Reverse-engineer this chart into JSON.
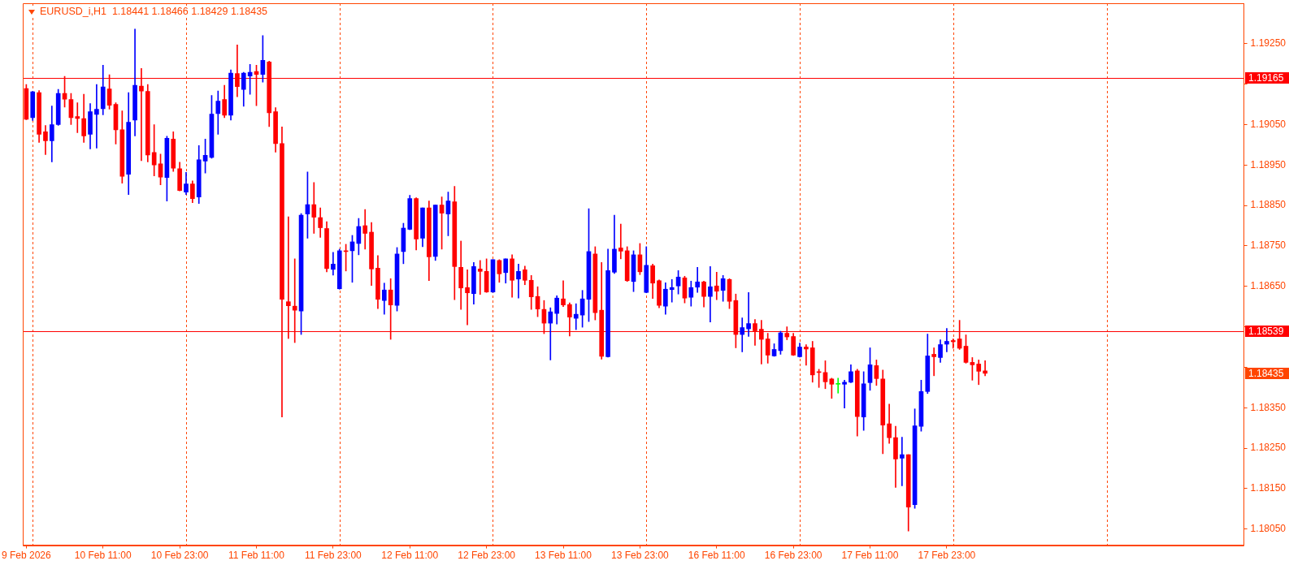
{
  "chart_data": {
    "type": "candlestick",
    "title": "EURUSD_i,H1  1.18441 1.18466 1.18429 1.18435",
    "categories": [
      "9 Feb 2026",
      null,
      null,
      null,
      null,
      null,
      null,
      null,
      null,
      null,
      null,
      null,
      "10 Feb 11:00",
      null,
      null,
      null,
      null,
      null,
      null,
      null,
      null,
      null,
      null,
      null,
      "10 Feb 23:00",
      null,
      null,
      null,
      null,
      null,
      null,
      null,
      null,
      null,
      null,
      null,
      "11 Feb 11:00",
      null,
      null,
      null,
      null,
      null,
      null,
      null,
      null,
      null,
      null,
      null,
      "11 Feb 23:00",
      null,
      null,
      null,
      null,
      null,
      null,
      null,
      null,
      null,
      null,
      null,
      "12 Feb 11:00",
      null,
      null,
      null,
      null,
      null,
      null,
      null,
      null,
      null,
      null,
      null,
      "12 Feb 23:00",
      null,
      null,
      null,
      null,
      null,
      null,
      null,
      null,
      null,
      null,
      null,
      "13 Feb 11:00",
      null,
      null,
      null,
      null,
      null,
      null,
      null,
      null,
      null,
      null,
      null,
      "13 Feb 23:00",
      null,
      null,
      null,
      null,
      null,
      null,
      null,
      null,
      null,
      null,
      null,
      "16 Feb 11:00",
      null,
      null,
      null,
      null,
      null,
      null,
      null,
      null,
      null,
      null,
      null,
      "16 Feb 23:00",
      null,
      null,
      null,
      null,
      null,
      null,
      null,
      null,
      null,
      null,
      null,
      "17 Feb 11:00",
      null,
      null,
      null,
      null,
      null,
      null,
      null,
      null,
      null,
      null,
      null,
      "17 Feb 23:00",
      null,
      null,
      null,
      null,
      null,
      null,
      null,
      null,
      null,
      null,
      null,
      null,
      null,
      null,
      null,
      null,
      null,
      null,
      null,
      null,
      null,
      null,
      null,
      null,
      null,
      null,
      null,
      null,
      null,
      null,
      null,
      null,
      null,
      null,
      null,
      null,
      null,
      null,
      null,
      null,
      null,
      null,
      null,
      null,
      null,
      null
    ],
    "ohlc": [
      [
        1.19139,
        1.19149,
        1.19062,
        1.19063
      ],
      [
        1.19067,
        1.19132,
        1.1906,
        1.19131
      ],
      [
        1.19129,
        1.19134,
        1.19006,
        1.19026
      ],
      [
        1.19032,
        1.19048,
        1.18976,
        1.1901
      ],
      [
        1.1901,
        1.19096,
        1.18958,
        1.1905
      ],
      [
        1.1905,
        1.19137,
        1.19048,
        1.19127
      ],
      [
        1.19127,
        1.19169,
        1.19093,
        1.19113
      ],
      [
        1.19112,
        1.19127,
        1.1905,
        1.19067
      ],
      [
        1.1907,
        1.19104,
        1.1903,
        1.19065
      ],
      [
        1.19065,
        1.19125,
        1.19006,
        1.19022
      ],
      [
        1.19026,
        1.19102,
        1.1899,
        1.19082
      ],
      [
        1.19075,
        1.19149,
        1.18992,
        1.19088
      ],
      [
        1.19089,
        1.19197,
        1.19074,
        1.19143
      ],
      [
        1.19138,
        1.19173,
        1.19088,
        1.19098
      ],
      [
        1.191,
        1.19104,
        1.19002,
        1.19037
      ],
      [
        1.19037,
        1.19084,
        1.18905,
        1.18922
      ],
      [
        1.18927,
        1.19129,
        1.18877,
        1.19056
      ],
      [
        1.19061,
        1.19286,
        1.19022,
        1.19147
      ],
      [
        1.19145,
        1.19189,
        1.18961,
        1.19133
      ],
      [
        1.19132,
        1.19149,
        1.18958,
        1.18975
      ],
      [
        1.18981,
        1.1905,
        1.18923,
        1.1895
      ],
      [
        1.18953,
        1.18977,
        1.18901,
        1.1892
      ],
      [
        1.18919,
        1.19021,
        1.18861,
        1.19016
      ],
      [
        1.19014,
        1.19032,
        1.18934,
        1.18942
      ],
      [
        1.18941,
        1.18957,
        1.18886,
        1.18887
      ],
      [
        1.18883,
        1.18932,
        1.18877,
        1.18903
      ],
      [
        1.18903,
        1.18911,
        1.18857,
        1.18867
      ],
      [
        1.18871,
        1.18998,
        1.18855,
        1.18963
      ],
      [
        1.1896,
        1.19014,
        1.1893,
        1.18974
      ],
      [
        1.18969,
        1.19122,
        1.18967,
        1.19076
      ],
      [
        1.19077,
        1.19133,
        1.19026,
        1.19108
      ],
      [
        1.19112,
        1.19147,
        1.19067,
        1.19073
      ],
      [
        1.19073,
        1.19185,
        1.19061,
        1.19177
      ],
      [
        1.19176,
        1.19247,
        1.19119,
        1.19144
      ],
      [
        1.19137,
        1.19179,
        1.19095,
        1.19177
      ],
      [
        1.1917,
        1.19199,
        1.19125,
        1.19179
      ],
      [
        1.19181,
        1.19197,
        1.19097,
        1.19174
      ],
      [
        1.19174,
        1.1927,
        1.19155,
        1.19209
      ],
      [
        1.19205,
        1.19207,
        1.19045,
        1.19079
      ],
      [
        1.19082,
        1.19092,
        1.18982,
        1.19003
      ],
      [
        1.19003,
        1.19044,
        1.18327,
        1.18618
      ],
      [
        1.18612,
        1.18822,
        1.18521,
        1.18602
      ],
      [
        1.18601,
        1.18718,
        1.18511,
        1.18591
      ],
      [
        1.18589,
        1.1883,
        1.18531,
        1.18826
      ],
      [
        1.18829,
        1.18933,
        1.18769,
        1.18852
      ],
      [
        1.18852,
        1.18907,
        1.18781,
        1.18821
      ],
      [
        1.1882,
        1.18844,
        1.18771,
        1.18795
      ],
      [
        1.18793,
        1.1881,
        1.18686,
        1.18694
      ],
      [
        1.18692,
        1.18734,
        1.18678,
        1.18705
      ],
      [
        1.18644,
        1.18742,
        1.18643,
        1.18738
      ],
      [
        1.18738,
        1.18754,
        1.18688,
        1.18736
      ],
      [
        1.18738,
        1.18776,
        1.1866,
        1.1876
      ],
      [
        1.18756,
        1.18818,
        1.18728,
        1.18798
      ],
      [
        1.188,
        1.1884,
        1.18742,
        1.18781
      ],
      [
        1.18784,
        1.18808,
        1.18652,
        1.18693
      ],
      [
        1.18695,
        1.18726,
        1.18595,
        1.18618
      ],
      [
        1.18615,
        1.18658,
        1.18581,
        1.18641
      ],
      [
        1.18641,
        1.18669,
        1.18519,
        1.18604
      ],
      [
        1.18603,
        1.18746,
        1.18589,
        1.1873
      ],
      [
        1.18736,
        1.18806,
        1.18706,
        1.18794
      ],
      [
        1.18791,
        1.18875,
        1.1879,
        1.18867
      ],
      [
        1.18867,
        1.18869,
        1.1874,
        1.18767
      ],
      [
        1.18769,
        1.18844,
        1.18748,
        1.18844
      ],
      [
        1.18844,
        1.18861,
        1.18664,
        1.18723
      ],
      [
        1.18724,
        1.18851,
        1.18714,
        1.18851
      ],
      [
        1.18851,
        1.18871,
        1.18742,
        1.18831
      ],
      [
        1.18829,
        1.18883,
        1.18775,
        1.18861
      ],
      [
        1.18859,
        1.18897,
        1.18617,
        1.18699
      ],
      [
        1.18697,
        1.18762,
        1.18593,
        1.18646
      ],
      [
        1.18647,
        1.18691,
        1.18555,
        1.18634
      ],
      [
        1.18632,
        1.18709,
        1.18606,
        1.18699
      ],
      [
        1.18693,
        1.18714,
        1.1863,
        1.18687
      ],
      [
        1.18687,
        1.18718,
        1.18635,
        1.18636
      ],
      [
        1.18636,
        1.18716,
        1.18635,
        1.18716
      ],
      [
        1.18714,
        1.18716,
        1.1866,
        1.18681
      ],
      [
        1.18684,
        1.18718,
        1.18658,
        1.18718
      ],
      [
        1.18718,
        1.18728,
        1.18623,
        1.18665
      ],
      [
        1.18668,
        1.18705,
        1.18621,
        1.18687
      ],
      [
        1.18691,
        1.187,
        1.18654,
        1.18665
      ],
      [
        1.18665,
        1.18677,
        1.18593,
        1.18624
      ],
      [
        1.18625,
        1.18649,
        1.18575,
        1.18594
      ],
      [
        1.18593,
        1.18615,
        1.18533,
        1.18559
      ],
      [
        1.18559,
        1.18597,
        1.18468,
        1.18587
      ],
      [
        1.18583,
        1.18627,
        1.18557,
        1.18621
      ],
      [
        1.18619,
        1.18664,
        1.186,
        1.18604
      ],
      [
        1.18605,
        1.18609,
        1.18527,
        1.18574
      ],
      [
        1.18571,
        1.18607,
        1.18543,
        1.18581
      ],
      [
        1.18579,
        1.1864,
        1.18549,
        1.18619
      ],
      [
        1.18618,
        1.18842,
        1.18563,
        1.18736
      ],
      [
        1.1873,
        1.18748,
        1.18567,
        1.18585
      ],
      [
        1.18591,
        1.18709,
        1.1847,
        1.18477
      ],
      [
        1.18476,
        1.18742,
        1.18475,
        1.18689
      ],
      [
        1.18685,
        1.18826,
        1.18682,
        1.18742
      ],
      [
        1.18745,
        1.18804,
        1.18718,
        1.18737
      ],
      [
        1.18738,
        1.18748,
        1.18662,
        1.18664
      ],
      [
        1.18662,
        1.18738,
        1.18637,
        1.18728
      ],
      [
        1.18728,
        1.18756,
        1.18679,
        1.18686
      ],
      [
        1.18635,
        1.18748,
        1.18634,
        1.18702
      ],
      [
        1.18701,
        1.18705,
        1.1862,
        1.18658
      ],
      [
        1.18664,
        1.18666,
        1.18597,
        1.18603
      ],
      [
        1.18601,
        1.18659,
        1.18581,
        1.18643
      ],
      [
        1.18642,
        1.18667,
        1.18611,
        1.18647
      ],
      [
        1.18651,
        1.18689,
        1.18631,
        1.18673
      ],
      [
        1.18671,
        1.18675,
        1.18609,
        1.18621
      ],
      [
        1.18623,
        1.18663,
        1.18601,
        1.18647
      ],
      [
        1.18648,
        1.18697,
        1.18635,
        1.18661
      ],
      [
        1.18661,
        1.18663,
        1.18599,
        1.18625
      ],
      [
        1.18625,
        1.18699,
        1.18562,
        1.18649
      ],
      [
        1.18651,
        1.18685,
        1.18617,
        1.18638
      ],
      [
        1.1864,
        1.18677,
        1.18613,
        1.18669
      ],
      [
        1.18667,
        1.18669,
        1.18595,
        1.18613
      ],
      [
        1.18615,
        1.18631,
        1.18498,
        1.18531
      ],
      [
        1.18531,
        1.18572,
        1.18488,
        1.18548
      ],
      [
        1.18545,
        1.18635,
        1.18526,
        1.18558
      ],
      [
        1.18558,
        1.18568,
        1.18504,
        1.1854
      ],
      [
        1.18544,
        1.18566,
        1.18458,
        1.18519
      ],
      [
        1.1852,
        1.18534,
        1.1846,
        1.1848
      ],
      [
        1.18478,
        1.18508,
        1.18477,
        1.18494
      ],
      [
        1.18491,
        1.18539,
        1.18482,
        1.18535
      ],
      [
        1.18534,
        1.1855,
        1.18518,
        1.18525
      ],
      [
        1.18526,
        1.18534,
        1.18479,
        1.1848
      ],
      [
        1.18476,
        1.1851,
        1.18475,
        1.185
      ],
      [
        1.185,
        1.18506,
        1.18455,
        1.18495
      ],
      [
        1.18498,
        1.18514,
        1.18413,
        1.18431
      ],
      [
        1.18439,
        1.18445,
        1.184,
        1.18437
      ],
      [
        1.18437,
        1.18466,
        1.18397,
        1.18414
      ],
      [
        1.18421,
        1.18423,
        1.18373,
        1.18408
      ],
      [
        1.18408,
        1.18423,
        1.18386,
        1.18408
      ],
      [
        1.18408,
        1.18418,
        1.18349,
        1.18413
      ],
      [
        1.18413,
        1.18456,
        1.18412,
        1.18439
      ],
      [
        1.18441,
        1.18445,
        1.1828,
        1.18328
      ],
      [
        1.18327,
        1.18439,
        1.18294,
        1.18409
      ],
      [
        1.18412,
        1.18498,
        1.18393,
        1.18456
      ],
      [
        1.18454,
        1.18468,
        1.18405,
        1.18422
      ],
      [
        1.18421,
        1.18443,
        1.18236,
        1.18307
      ],
      [
        1.1831,
        1.18359,
        1.18262,
        1.18276
      ],
      [
        1.18276,
        1.18304,
        1.18153,
        1.18223
      ],
      [
        1.18225,
        1.18277,
        1.18157,
        1.18234
      ],
      [
        1.18234,
        1.18234,
        1.18045,
        1.18104
      ],
      [
        1.1811,
        1.18347,
        1.18101,
        1.18305
      ],
      [
        1.18304,
        1.18418,
        1.18292,
        1.1839
      ],
      [
        1.1839,
        1.18532,
        1.18385,
        1.18478
      ],
      [
        1.18482,
        1.18498,
        1.18429,
        1.18476
      ],
      [
        1.18474,
        1.18518,
        1.18462,
        1.18506
      ],
      [
        1.18507,
        1.18546,
        1.18488,
        1.18514
      ],
      [
        1.18516,
        1.1852,
        1.18497,
        1.18513
      ],
      [
        1.1852,
        1.18566,
        1.18494,
        1.18497
      ],
      [
        1.18502,
        1.1853,
        1.1846,
        1.18462
      ],
      [
        1.18462,
        1.18474,
        1.18418,
        1.18456
      ],
      [
        1.18458,
        1.18468,
        1.18407,
        1.1844
      ],
      [
        1.18441,
        1.18466,
        1.18429,
        1.18435
      ],
      null,
      null,
      null,
      null,
      null,
      null,
      null,
      null,
      null,
      null,
      null,
      null,
      null,
      null,
      null,
      null,
      null,
      null,
      null,
      null,
      null,
      null,
      null,
      null,
      null,
      null,
      null,
      null,
      null,
      null,
      null,
      null,
      null,
      null,
      null,
      null,
      null,
      null,
      null,
      null
    ],
    "colors": [
      "#ff0000",
      "#0000ff",
      "#ff0000",
      "#ff0000",
      "#0000ff",
      "#0000ff",
      "#ff0000",
      "#ff0000",
      "#ff0000",
      "#ff0000",
      "#0000ff",
      "#0000ff",
      "#0000ff",
      "#ff0000",
      "#ff0000",
      "#ff0000",
      "#0000ff",
      "#0000ff",
      "#ff0000",
      "#ff0000",
      "#ff0000",
      "#ff0000",
      "#0000ff",
      "#ff0000",
      "#ff0000",
      "#0000ff",
      "#ff0000",
      "#0000ff",
      "#0000ff",
      "#0000ff",
      "#0000ff",
      "#ff0000",
      "#0000ff",
      "#ff0000",
      "#0000ff",
      "#0000ff",
      "#ff0000",
      "#0000ff",
      "#ff0000",
      "#ff0000",
      "#ff0000",
      "#ff0000",
      "#ff0000",
      "#0000ff",
      "#0000ff",
      "#ff0000",
      "#ff0000",
      "#ff0000",
      "#0000ff",
      "#0000ff",
      "#ff0000",
      "#0000ff",
      "#0000ff",
      "#ff0000",
      "#ff0000",
      "#ff0000",
      "#0000ff",
      "#ff0000",
      "#0000ff",
      "#0000ff",
      "#0000ff",
      "#ff0000",
      "#0000ff",
      "#ff0000",
      "#0000ff",
      "#ff0000",
      "#0000ff",
      "#ff0000",
      "#ff0000",
      "#ff0000",
      "#0000ff",
      "#ff0000",
      "#ff0000",
      "#0000ff",
      "#ff0000",
      "#0000ff",
      "#ff0000",
      "#0000ff",
      "#ff0000",
      "#ff0000",
      "#ff0000",
      "#ff0000",
      "#0000ff",
      "#0000ff",
      "#ff0000",
      "#ff0000",
      "#0000ff",
      "#0000ff",
      "#0000ff",
      "#ff0000",
      "#ff0000",
      "#0000ff",
      "#0000ff",
      "#ff0000",
      "#ff0000",
      "#0000ff",
      "#ff0000",
      "#0000ff",
      "#ff0000",
      "#ff0000",
      "#0000ff",
      "#0000ff",
      "#0000ff",
      "#ff0000",
      "#0000ff",
      "#0000ff",
      "#ff0000",
      "#0000ff",
      "#ff0000",
      "#0000ff",
      "#ff0000",
      "#ff0000",
      "#0000ff",
      "#0000ff",
      "#ff0000",
      "#ff0000",
      "#ff0000",
      "#0000ff",
      "#0000ff",
      "#ff0000",
      "#ff0000",
      "#0000ff",
      "#ff0000",
      "#ff0000",
      "#ff0000",
      "#ff0000",
      "#ff0000",
      "#00ff00",
      "#0000ff",
      "#0000ff",
      "#ff0000",
      "#0000ff",
      "#0000ff",
      "#ff0000",
      "#ff0000",
      "#ff0000",
      "#ff0000",
      "#0000ff",
      "#ff0000",
      "#0000ff",
      "#0000ff",
      "#0000ff",
      "#ff0000",
      "#0000ff",
      "#0000ff",
      "#ff0000",
      "#ff0000",
      "#ff0000",
      "#ff0000",
      "#ff0000",
      "#ff0000",
      null,
      null,
      null,
      null,
      null,
      null,
      null,
      null,
      null,
      null,
      null,
      null,
      null,
      null,
      null,
      null,
      null,
      null,
      null,
      null,
      null,
      null,
      null,
      null,
      null,
      null,
      null,
      null,
      null,
      null,
      null,
      null,
      null,
      null,
      null,
      null,
      null,
      null,
      null,
      null
    ],
    "ylim": [
      1.1801,
      1.1935
    ],
    "yticks": [
      {
        "value": 1.1805,
        "label": "1.18050"
      },
      {
        "value": 1.1815,
        "label": "1.18150"
      },
      {
        "value": 1.1825,
        "label": "1.18250"
      },
      {
        "value": 1.1835,
        "label": "1.18350"
      },
      {
        "value": 1.1845,
        "label": null
      },
      {
        "value": 1.1855,
        "label": null
      },
      {
        "value": 1.1865,
        "label": "1.18650"
      },
      {
        "value": 1.1875,
        "label": "1.18750"
      },
      {
        "value": 1.1885,
        "label": "1.18850"
      },
      {
        "value": 1.1895,
        "label": "1.18950"
      },
      {
        "value": 1.1905,
        "label": "1.19050"
      },
      {
        "value": 1.1915,
        "label": null
      },
      {
        "value": 1.1925,
        "label": "1.19250"
      }
    ],
    "ref_lines": [
      {
        "axis": "y",
        "value": 1.19165,
        "label": "1.19165",
        "color": "#ff0000"
      },
      {
        "axis": "y",
        "value": 1.18539,
        "label": "1.18539",
        "color": "#ff0000"
      }
    ],
    "annotations": [
      "1.18435"
    ]
  }
}
